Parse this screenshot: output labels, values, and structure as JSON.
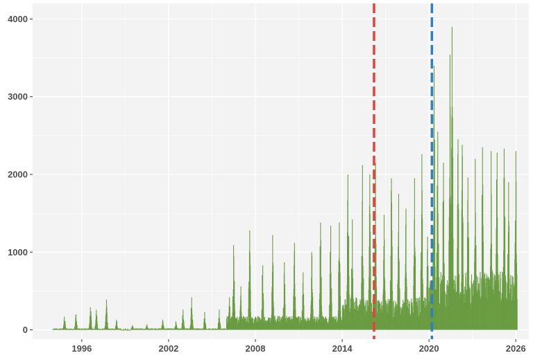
{
  "chart_data": {
    "type": "bar",
    "title": "",
    "xlabel": "",
    "ylabel": "",
    "xlim": [
      1992.6,
      2026.9
    ],
    "ylim": [
      -120,
      4200
    ],
    "x_ticks": [
      1996,
      2002,
      2008,
      2014,
      2020,
      2026
    ],
    "x_tick_labels": [
      "1996",
      "2002",
      "2008",
      "2014",
      "2020",
      "2026"
    ],
    "y_ticks": [
      0,
      1000,
      2000,
      3000,
      4000
    ],
    "y_tick_labels": [
      "0",
      "1000",
      "2000",
      "3000",
      "4000"
    ],
    "grid": true,
    "legend": "none",
    "series_color": "#6a9c43",
    "panel_color": "#f3f3f3",
    "grid_color": "#ffffff",
    "x_range": [
      1994.0,
      2026.1
    ],
    "peaks": [
      {
        "x": 1994.8,
        "y": 170
      },
      {
        "x": 1995.6,
        "y": 200
      },
      {
        "x": 1996.6,
        "y": 290
      },
      {
        "x": 1997.0,
        "y": 260
      },
      {
        "x": 1997.7,
        "y": 390
      },
      {
        "x": 1998.4,
        "y": 130
      },
      {
        "x": 1999.5,
        "y": 60
      },
      {
        "x": 2000.5,
        "y": 70
      },
      {
        "x": 2001.6,
        "y": 130
      },
      {
        "x": 2002.5,
        "y": 110
      },
      {
        "x": 2003.0,
        "y": 260
      },
      {
        "x": 2003.6,
        "y": 420
      },
      {
        "x": 2004.5,
        "y": 230
      },
      {
        "x": 2005.5,
        "y": 260
      },
      {
        "x": 2006.2,
        "y": 420
      },
      {
        "x": 2006.5,
        "y": 1090
      },
      {
        "x": 2007.0,
        "y": 560
      },
      {
        "x": 2007.6,
        "y": 1280
      },
      {
        "x": 2008.5,
        "y": 830
      },
      {
        "x": 2009.2,
        "y": 1220
      },
      {
        "x": 2010.0,
        "y": 870
      },
      {
        "x": 2010.7,
        "y": 1120
      },
      {
        "x": 2011.3,
        "y": 740
      },
      {
        "x": 2011.9,
        "y": 1000
      },
      {
        "x": 2012.5,
        "y": 1380
      },
      {
        "x": 2013.2,
        "y": 1340
      },
      {
        "x": 2013.8,
        "y": 1380
      },
      {
        "x": 2014.4,
        "y": 2000
      },
      {
        "x": 2014.7,
        "y": 1420
      },
      {
        "x": 2015.4,
        "y": 2120
      },
      {
        "x": 2015.9,
        "y": 2000
      },
      {
        "x": 2016.3,
        "y": 2150
      },
      {
        "x": 2016.9,
        "y": 1480
      },
      {
        "x": 2017.4,
        "y": 1950
      },
      {
        "x": 2017.9,
        "y": 1750
      },
      {
        "x": 2018.4,
        "y": 1560
      },
      {
        "x": 2019.0,
        "y": 1950
      },
      {
        "x": 2019.5,
        "y": 2260
      },
      {
        "x": 2019.9,
        "y": 1200
      },
      {
        "x": 2020.35,
        "y": 3400
      },
      {
        "x": 2020.6,
        "y": 2550
      },
      {
        "x": 2021.0,
        "y": 2150
      },
      {
        "x": 2021.45,
        "y": 3540
      },
      {
        "x": 2021.6,
        "y": 3900
      },
      {
        "x": 2022.0,
        "y": 2450
      },
      {
        "x": 2022.3,
        "y": 2380
      },
      {
        "x": 2022.7,
        "y": 1960
      },
      {
        "x": 2023.2,
        "y": 2200
      },
      {
        "x": 2023.7,
        "y": 2350
      },
      {
        "x": 2024.3,
        "y": 2300
      },
      {
        "x": 2024.7,
        "y": 2280
      },
      {
        "x": 2025.2,
        "y": 2330
      },
      {
        "x": 2025.5,
        "y": 1900
      },
      {
        "x": 2026.0,
        "y": 2300
      }
    ],
    "annotations": [
      {
        "type": "vline",
        "x": 2016.2,
        "color": "#e8413c",
        "style": "dashed"
      },
      {
        "type": "vline",
        "x": 2020.2,
        "color": "#2f7fc1",
        "style": "dashed"
      }
    ]
  }
}
